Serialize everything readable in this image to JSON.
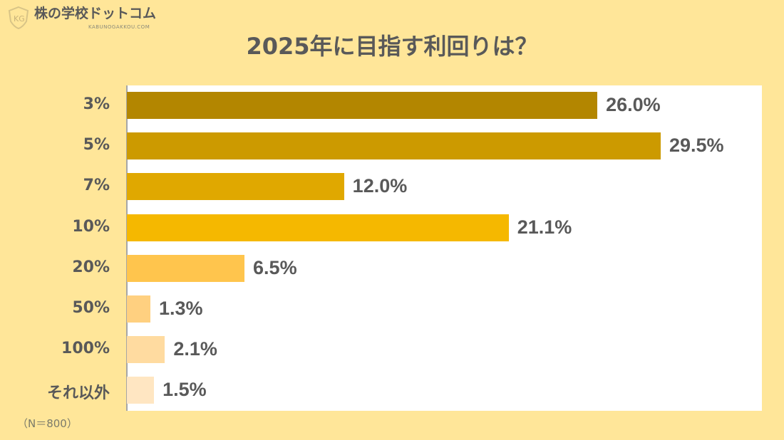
{
  "logo": {
    "name": "株の学校ドットコム",
    "sub": "KABUNOGAKKOU.COM",
    "mark": "KG"
  },
  "chart_data": {
    "type": "bar",
    "orientation": "horizontal",
    "title": "2025年に目指す利回りは？",
    "categories": [
      "3%",
      "5%",
      "7%",
      "10%",
      "20%",
      "50%",
      "100%",
      "それ以外"
    ],
    "values": [
      26.0,
      29.5,
      12.0,
      21.1,
      6.5,
      1.3,
      2.1,
      1.5
    ],
    "labels": [
      "26.0%",
      "29.5%",
      "12.0%",
      "21.1%",
      "6.5%",
      "1.3%",
      "2.1%",
      "1.5%"
    ],
    "colors": [
      "#b38600",
      "#cc9a00",
      "#e0a800",
      "#f5b800",
      "#ffc54d",
      "#ffd080",
      "#ffdba0",
      "#ffe6c2"
    ],
    "xlim": [
      0,
      35
    ],
    "grid": false,
    "legend": "none"
  },
  "note": "（N＝800）"
}
